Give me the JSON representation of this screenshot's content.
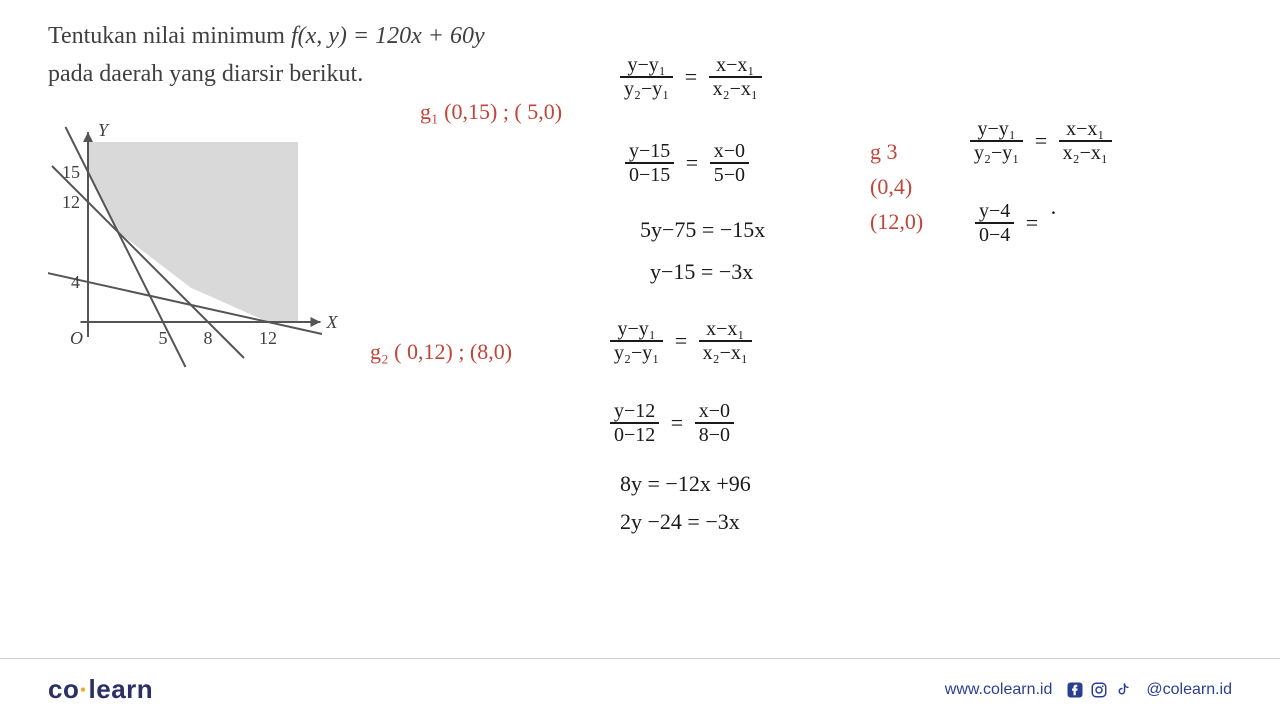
{
  "problem": {
    "line1_prefix": "Tentukan nilai minimum ",
    "func": "f(x, y) = 120x + 60y",
    "line2": "pada daerah yang diarsir berikut."
  },
  "graph": {
    "axis_y_label": "Y",
    "axis_x_label": "X",
    "origin_label": "O",
    "y_ticks": [
      15,
      12,
      4
    ],
    "x_ticks": [
      5,
      8,
      12
    ],
    "axis_color": "#555555",
    "line_color": "#555555",
    "shade_color": "#d9d9d9",
    "tick_font_size": 18,
    "plot": {
      "ox": 40,
      "oy": 210,
      "sx": 15,
      "sy": 10
    },
    "lines": [
      {
        "p1": [
          0,
          15
        ],
        "p2": [
          5,
          0
        ]
      },
      {
        "p1": [
          0,
          12
        ],
        "p2": [
          8,
          0
        ]
      },
      {
        "p1": [
          0,
          4
        ],
        "p2": [
          12,
          0
        ]
      }
    ],
    "shade_top_y": 18,
    "shade_right_x": 14
  },
  "work": {
    "g1_label": "g₁  (0,15) ; ( 5,0)",
    "g2_label": "g₂ ( 0,12) ; (8,0)",
    "g3_label": "g 3",
    "g3_pt1": "(0,4)",
    "g3_pt2": "(12,0)",
    "twopoint_num_l": "y−y₁",
    "twopoint_den_l": "y₂−y₁",
    "twopoint_num_r": "x−x₁",
    "twopoint_den_r": "x₂−x₁",
    "g1_s2_num_l": "y−15",
    "g1_s2_den_l": "0−15",
    "g1_s2_num_r": "x−0",
    "g1_s2_den_r": "5−0",
    "g1_s3": "5y−75 = −15x",
    "g1_s4": "y−15 = −3x",
    "g2_s2_num_l": "y−12",
    "g2_s2_den_l": "0−12",
    "g2_s2_num_r": "x−0",
    "g2_s2_den_r": "8−0",
    "g2_s3": "8y = −12x +96",
    "g2_s4": "2y −24 = −3x",
    "g3_s2_num_l": "y−4",
    "g3_s2_den_l": "0−4",
    "g3_s2_rhs": "·",
    "colors": {
      "red": "#c24438",
      "black": "#1a1a1a"
    }
  },
  "footer": {
    "logo_co": "co",
    "logo_dot": "·",
    "logo_learn": "learn",
    "url": "www.colearn.id",
    "handle": "@colearn.id",
    "brand_blue": "#2a3f92",
    "brand_navy": "#2a2f66",
    "brand_orange": "#f5a623"
  }
}
